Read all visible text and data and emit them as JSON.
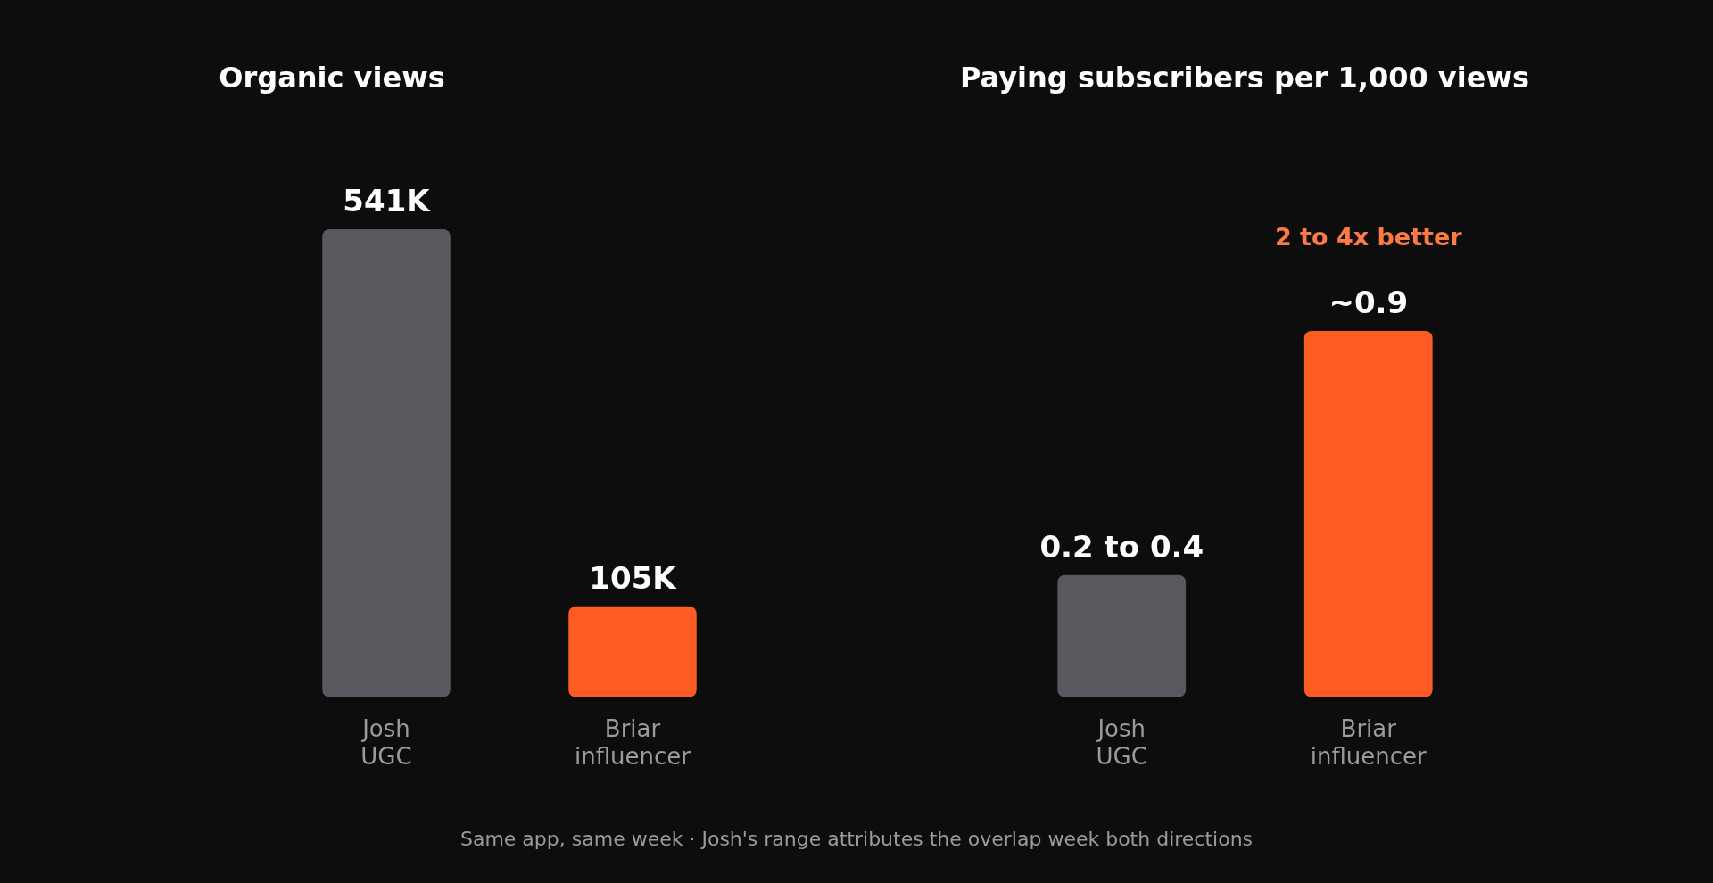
{
  "chart_data": [
    {
      "type": "bar",
      "title": "Organic views",
      "categories": [
        "Josh UGC",
        "Briar influencer"
      ],
      "values": [
        541000,
        105000
      ],
      "value_labels": [
        "541K",
        "105K"
      ],
      "colors": [
        "#58585e",
        "#ff5c24"
      ]
    },
    {
      "type": "bar",
      "title": "Paying subscribers per 1,000 views",
      "categories": [
        "Josh UGC",
        "Briar influencer"
      ],
      "values": [
        0.3,
        0.9
      ],
      "value_labels": [
        null,
        "~0.9"
      ],
      "colors": [
        "#58585e",
        "#ff5c24"
      ],
      "annotations": [
        "0.2 to 0.4",
        "2 to 4x better",
        "Same app, same week · Josh's range attributes the overlap week both directions"
      ]
    }
  ]
}
